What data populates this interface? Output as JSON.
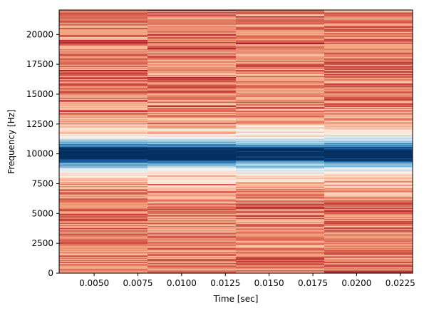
{
  "chart_data": {
    "type": "heatmap",
    "title": "",
    "xlabel": "Time [sec]",
    "ylabel": "Frequency [Hz]",
    "xlim": [
      0.003,
      0.0232
    ],
    "ylim": [
      0,
      22050
    ],
    "x_ticks": [
      0.005,
      0.0075,
      0.01,
      0.0125,
      0.015,
      0.0175,
      0.02,
      0.0225
    ],
    "x_tick_labels": [
      "0.0050",
      "0.0075",
      "0.0100",
      "0.0125",
      "0.0150",
      "0.0175",
      "0.0200",
      "0.0225"
    ],
    "y_ticks": [
      0,
      2500,
      5000,
      7500,
      10000,
      12500,
      15000,
      17500,
      20000
    ],
    "y_tick_labels": [
      "0",
      "2500",
      "5000",
      "7500",
      "10000",
      "12500",
      "15000",
      "17500",
      "20000"
    ],
    "colormap": "RdBu",
    "grid": false,
    "time_bins": [
      0.003,
      0.00805,
      0.0131,
      0.01815,
      0.0232
    ],
    "dominant_frequency_hz": 10000,
    "dominant_line_color": "#08306b"
  }
}
